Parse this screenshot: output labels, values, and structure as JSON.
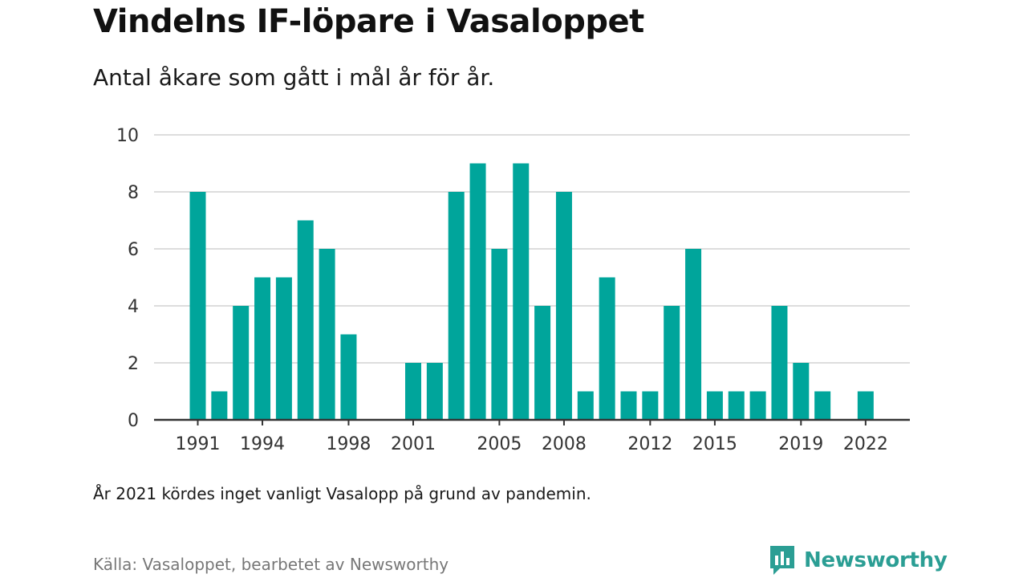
{
  "title": "Vindelns IF-löpare i Vasaloppet",
  "subtitle": "Antal åkare som gått i mål år för år.",
  "note": "År 2021 kördes inget vanligt Vasalopp på grund av pandemin.",
  "source": "Källa: Vasaloppet, bearbetet av Newsworthy",
  "brand": {
    "name": "Newsworthy",
    "icon": "newsworthy-logo-icon",
    "color": "#2b9e94"
  },
  "colors": {
    "bar": "#00a59b",
    "grid": "#dddddd",
    "axis": "#333333"
  },
  "chart_data": {
    "type": "bar",
    "categories": [
      1991,
      1992,
      1993,
      1994,
      1995,
      1996,
      1997,
      1998,
      1999,
      2000,
      2001,
      2002,
      2003,
      2004,
      2005,
      2006,
      2007,
      2008,
      2009,
      2010,
      2011,
      2012,
      2013,
      2014,
      2015,
      2016,
      2017,
      2018,
      2019,
      2020,
      2021,
      2022
    ],
    "values": [
      8,
      1,
      4,
      5,
      5,
      7,
      6,
      3,
      0,
      0,
      2,
      2,
      8,
      9,
      6,
      9,
      4,
      8,
      1,
      5,
      1,
      1,
      4,
      6,
      1,
      1,
      1,
      4,
      2,
      1,
      0,
      1
    ],
    "x_tick_labels": [
      "1991",
      "1994",
      "1998",
      "2001",
      "2005",
      "2008",
      "2012",
      "2015",
      "2019",
      "2022"
    ],
    "y_ticks": [
      "0",
      "2",
      "4",
      "6",
      "8",
      "10"
    ],
    "ylim": [
      0,
      10
    ],
    "grid": true,
    "title": "Vindelns IF-löpare i Vasaloppet",
    "xlabel": "",
    "ylabel": ""
  }
}
